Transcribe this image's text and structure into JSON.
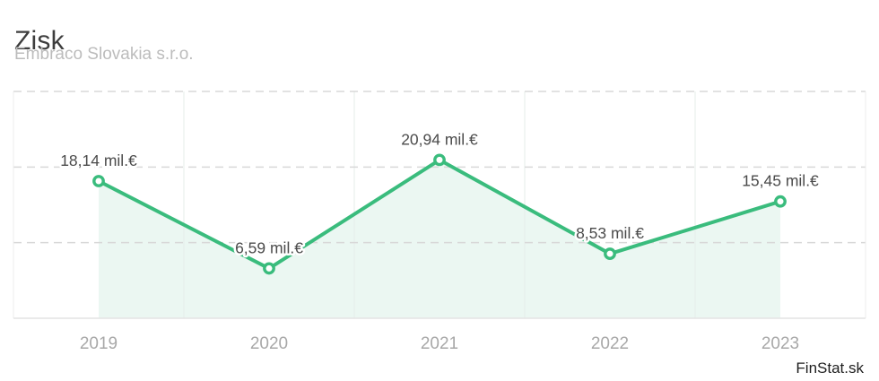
{
  "header": {
    "title": "Zisk",
    "subtitle": "Embraco Slovakia s.r.o."
  },
  "attribution": "FinStat.sk",
  "chart_data": {
    "type": "line",
    "title": "Zisk",
    "subtitle": "Embraco Slovakia s.r.o.",
    "categories": [
      "2019",
      "2020",
      "2021",
      "2022",
      "2023"
    ],
    "values": [
      18.14,
      6.59,
      20.94,
      8.53,
      15.45
    ],
    "point_labels": [
      "18,14 mil.€",
      "6,59 mil.€",
      "20,94 mil.€",
      "8,53 mil.€",
      "15,45 mil.€"
    ],
    "unit": "mil.€",
    "xlabel": "",
    "ylabel": "",
    "ylim": [
      0,
      30
    ],
    "grid_step": 10,
    "legend": "none",
    "grid": "horizontal dashed lines every 10, vertical solid band separators between years, area fill under line",
    "colors": {
      "line": "#3abc7d",
      "marker_fill": "#ffffff",
      "area_fill": "#ebf7f2",
      "grid_dash": "#d8d8d8",
      "grid_vertical": "#e6ecea",
      "axis_border": "#ececec",
      "axis_bottom": "#e4e4e4",
      "point_label": "#4b4b4b",
      "tick_label": "#a8a8a8"
    }
  }
}
